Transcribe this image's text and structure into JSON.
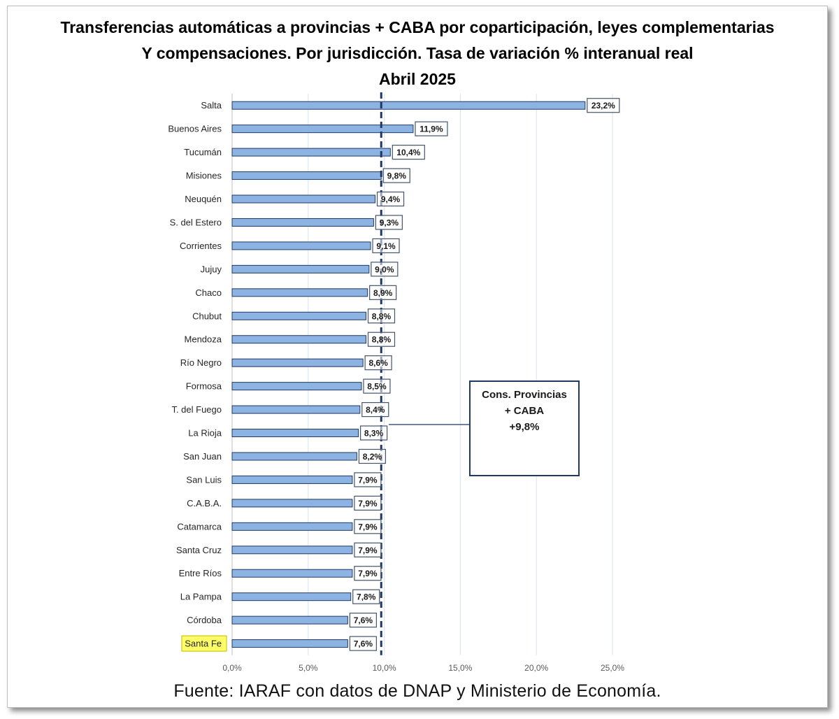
{
  "title": {
    "line1": "Transferencias automáticas a provincias + CABA por coparticipación, leyes complementarias",
    "line2": "Y compensaciones. Por jurisdicción. Tasa de variación % interanual real",
    "line3": "Abril 2025"
  },
  "source": "Fuente: IARAF con datos de DNAP y Ministerio de Economía.",
  "chart_data": {
    "type": "bar",
    "orientation": "horizontal",
    "title": "Transferencias automáticas a provincias + CABA por coparticipación, leyes complementarias Y compensaciones. Por jurisdicción. Tasa de variación % interanual real Abril 2025",
    "categories": [
      "Salta",
      "Buenos Aires",
      "Tucumán",
      "Misiones",
      "Neuquén",
      "S. del Estero",
      "Corrientes",
      "Jujuy",
      "Chaco",
      "Chubut",
      "Mendoza",
      "Río Negro",
      "Formosa",
      "T. del Fuego",
      "La Rioja",
      "San Juan",
      "San Luis",
      "C.A.B.A.",
      "Catamarca",
      "Santa Cruz",
      "Entre Ríos",
      "La Pampa",
      "Córdoba",
      "Santa Fe"
    ],
    "values": [
      23.2,
      11.9,
      10.4,
      9.8,
      9.4,
      9.3,
      9.1,
      9.0,
      8.9,
      8.8,
      8.8,
      8.6,
      8.5,
      8.4,
      8.3,
      8.2,
      7.9,
      7.9,
      7.9,
      7.9,
      7.9,
      7.8,
      7.6,
      7.6
    ],
    "value_labels": [
      "23,2%",
      "11,9%",
      "10,4%",
      "9,8%",
      "9,4%",
      "9,3%",
      "9,1%",
      "9,0%",
      "8,9%",
      "8,8%",
      "8,8%",
      "8,6%",
      "8,5%",
      "8,4%",
      "8,3%",
      "8,2%",
      "7,9%",
      "7,9%",
      "7,9%",
      "7,9%",
      "7,9%",
      "7,8%",
      "7,6%",
      "7,6%"
    ],
    "highlighted_category": "Santa Fe",
    "xlim": [
      0,
      25
    ],
    "xticks": [
      0,
      5,
      10,
      15,
      20,
      25
    ],
    "xtick_labels": [
      "0,0%",
      "5,0%",
      "10,0%",
      "15,0%",
      "20,0%",
      "25,0%"
    ],
    "grid": "vertical",
    "reference_line": {
      "value": 9.8,
      "style": "dashed"
    },
    "annotation": {
      "lines": [
        "Cons. Provincias",
        "+ CABA",
        "+9,8%"
      ]
    },
    "colors": {
      "bar_fill": "#8db3e2",
      "bar_stroke": "#1f3864",
      "reference_line": "#1f3864",
      "highlight": "#ffff66",
      "grid": "#d9e2f3"
    }
  }
}
